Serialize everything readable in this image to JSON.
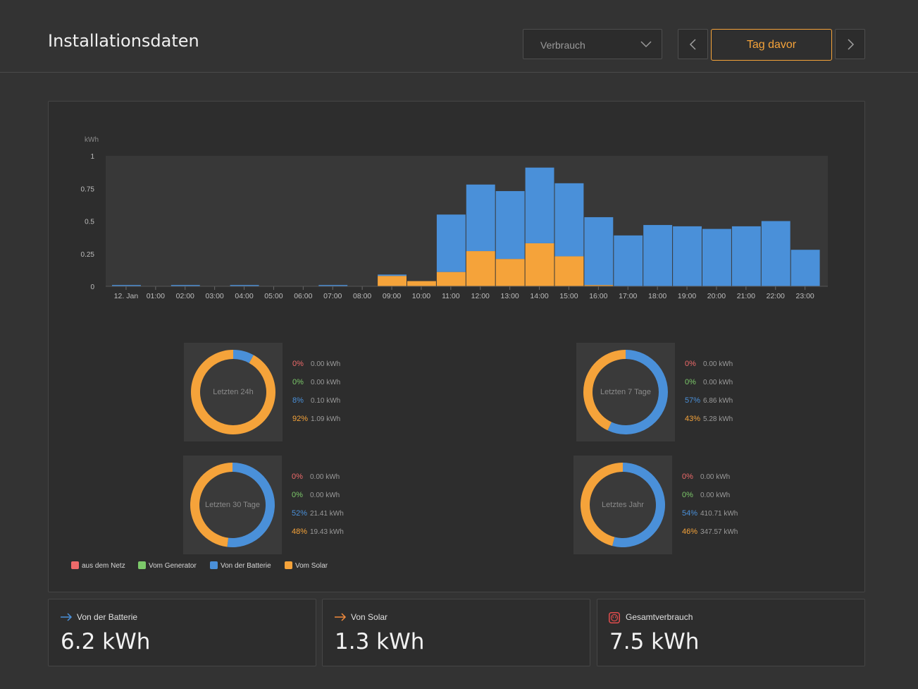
{
  "header": {
    "title": "Installationsdaten",
    "dropdown_value": "Verbrauch",
    "day_button": "Tag davor"
  },
  "colors": {
    "accent": "#f5a33a",
    "grid": "#ee6a6a",
    "generator": "#7cc96a",
    "battery": "#4a90d9",
    "solar": "#f5a33a"
  },
  "chart_data": {
    "type": "bar",
    "stacked": true,
    "ylabel": "kWh",
    "ylim": [
      0,
      1
    ],
    "yticks": [
      "0",
      "0.25",
      "0.5",
      "0.75",
      "1"
    ],
    "categories": [
      "12. Jan",
      "01:00",
      "02:00",
      "03:00",
      "04:00",
      "05:00",
      "06:00",
      "07:00",
      "08:00",
      "09:00",
      "10:00",
      "11:00",
      "12:00",
      "13:00",
      "14:00",
      "15:00",
      "16:00",
      "17:00",
      "18:00",
      "19:00",
      "20:00",
      "21:00",
      "22:00",
      "23:00"
    ],
    "series": [
      {
        "name": "Vom Solar",
        "color": "#f5a33a",
        "values": [
          0,
          0,
          0,
          0,
          0,
          0,
          0,
          0,
          0,
          0.08,
          0.04,
          0.11,
          0.27,
          0.21,
          0.33,
          0.23,
          0.01,
          0,
          0,
          0,
          0,
          0,
          0,
          0
        ]
      },
      {
        "name": "Von der Batterie",
        "color": "#4a90d9",
        "values": [
          0.01,
          0,
          0.01,
          0,
          0.01,
          0,
          0,
          0.01,
          0,
          0.01,
          0,
          0.44,
          0.51,
          0.52,
          0.58,
          0.56,
          0.52,
          0.39,
          0.47,
          0.46,
          0.44,
          0.46,
          0.5,
          0.28
        ]
      }
    ]
  },
  "donuts": [
    {
      "label": "Letzten 24h",
      "rows": [
        {
          "pct": "0%",
          "val": "0.00 kWh"
        },
        {
          "pct": "0%",
          "val": "0.00 kWh"
        },
        {
          "pct": "8%",
          "val": "0.10 kWh"
        },
        {
          "pct": "92%",
          "val": "1.09 kWh"
        }
      ],
      "battery_fraction": 0.08
    },
    {
      "label": "Letzten 7 Tage",
      "rows": [
        {
          "pct": "0%",
          "val": "0.00 kWh"
        },
        {
          "pct": "0%",
          "val": "0.00 kWh"
        },
        {
          "pct": "57%",
          "val": "6.86 kWh"
        },
        {
          "pct": "43%",
          "val": "5.28 kWh"
        }
      ],
      "battery_fraction": 0.57
    },
    {
      "label": "Letzten 30 Tage",
      "rows": [
        {
          "pct": "0%",
          "val": "0.00 kWh"
        },
        {
          "pct": "0%",
          "val": "0.00 kWh"
        },
        {
          "pct": "52%",
          "val": "21.41 kWh"
        },
        {
          "pct": "48%",
          "val": "19.43 kWh"
        }
      ],
      "battery_fraction": 0.52
    },
    {
      "label": "Letztes Jahr",
      "rows": [
        {
          "pct": "0%",
          "val": "0.00 kWh"
        },
        {
          "pct": "0%",
          "val": "0.00 kWh"
        },
        {
          "pct": "54%",
          "val": "410.71 kWh"
        },
        {
          "pct": "46%",
          "val": "347.57 kWh"
        }
      ],
      "battery_fraction": 0.54
    }
  ],
  "legend": [
    {
      "label": "aus dem Netz",
      "color": "#ee6a6a"
    },
    {
      "label": "Vom Generator",
      "color": "#7cc96a"
    },
    {
      "label": "Von der Batterie",
      "color": "#4a90d9"
    },
    {
      "label": "Vom Solar",
      "color": "#f5a33a"
    }
  ],
  "cards": [
    {
      "label": "Von der Batterie",
      "value": "6.2 kWh",
      "icon": "arrow-right-icon",
      "icon_color": "#4a90d9"
    },
    {
      "label": "Von Solar",
      "value": "1.3 kWh",
      "icon": "arrow-right-icon",
      "icon_color": "#f08a3c"
    },
    {
      "label": "Gesamtverbrauch",
      "value": "7.5 kWh",
      "icon": "power-outlet-icon",
      "icon_color": "#e04c4c"
    }
  ]
}
